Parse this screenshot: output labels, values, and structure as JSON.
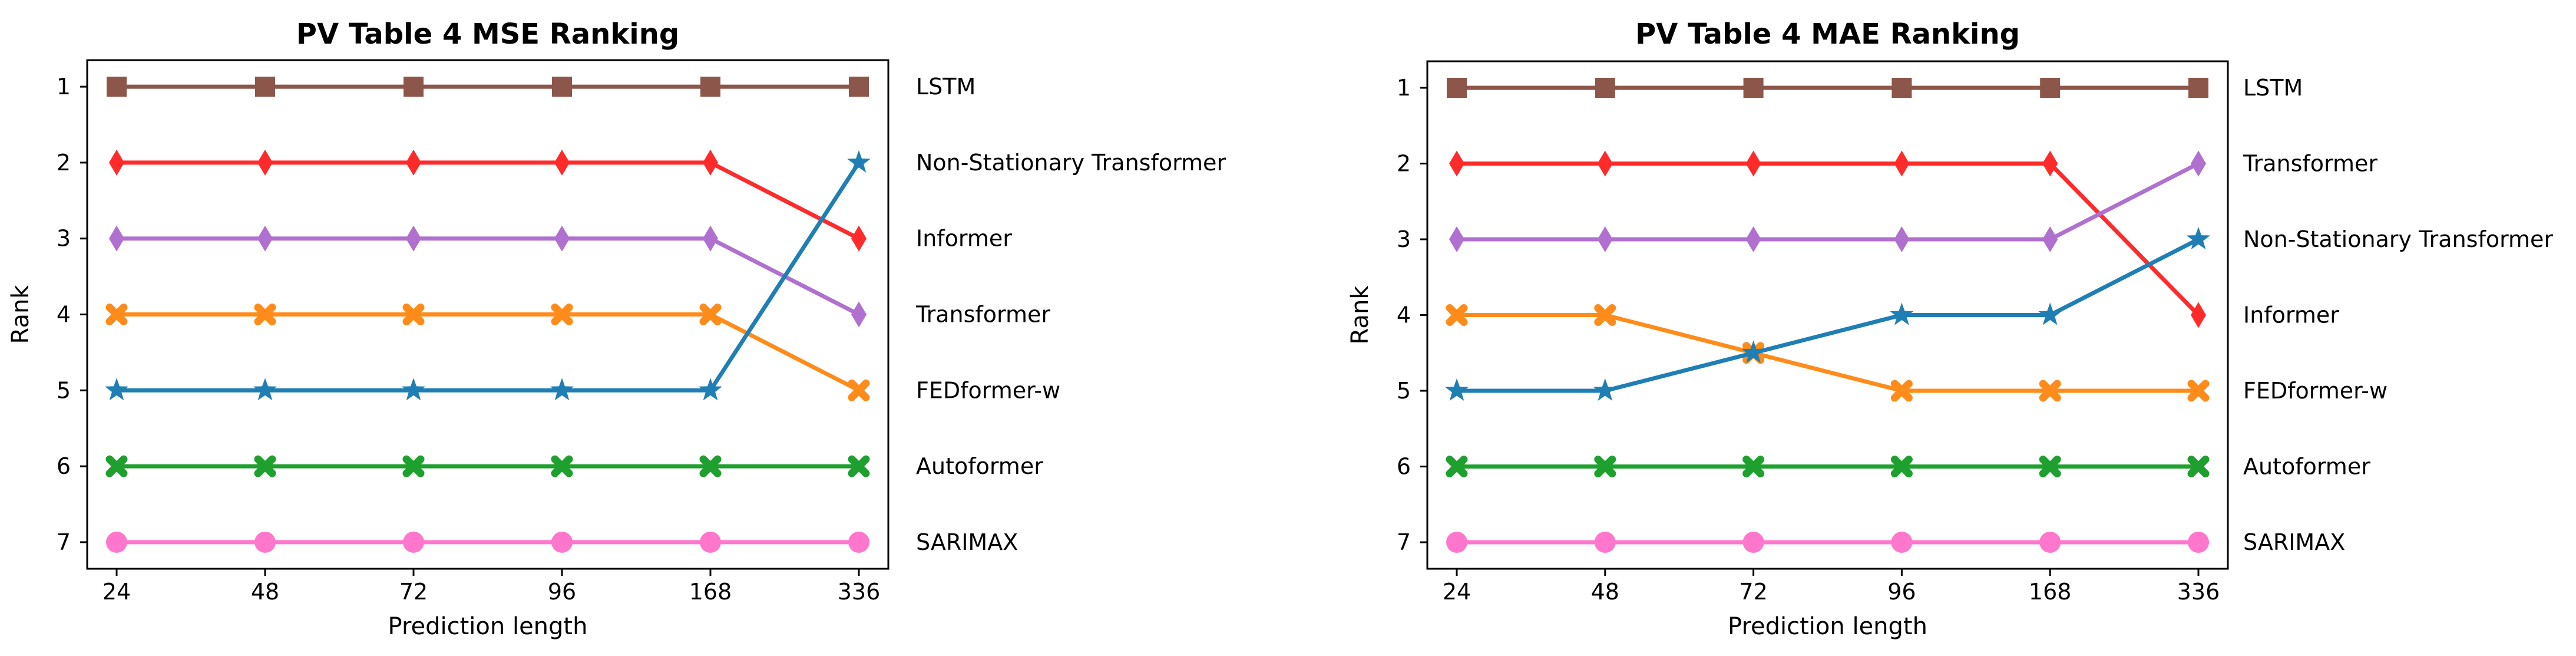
{
  "chart_data": [
    {
      "type": "line",
      "title": "PV Table 4 MSE Ranking",
      "xlabel": "Prediction length",
      "ylabel": "Rank",
      "categories": [
        "24",
        "48",
        "72",
        "96",
        "168",
        "336"
      ],
      "y_ticks": [
        "1",
        "2",
        "3",
        "4",
        "5",
        "6",
        "7"
      ],
      "ylim": [
        7.35,
        0.65
      ],
      "y_inverted": true,
      "grid": false,
      "labels_right": [
        "LSTM",
        "Non-Stationary Transformer",
        "Informer",
        "Transformer",
        "FEDformer-w",
        "Autoformer",
        "SARIMAX"
      ],
      "series": [
        {
          "values": [
            1,
            1,
            1,
            1,
            1,
            1
          ],
          "color": "#8c564b",
          "marker": "square"
        },
        {
          "values": [
            2,
            2,
            2,
            2,
            2,
            3
          ],
          "color": "#ff2b2b",
          "marker": "diamond"
        },
        {
          "values": [
            3,
            3,
            3,
            3,
            3,
            4
          ],
          "color": "#b070d0",
          "marker": "diamond"
        },
        {
          "values": [
            4,
            4,
            4,
            4,
            4,
            5
          ],
          "color": "#ff8c1a",
          "marker": "x"
        },
        {
          "values": [
            5,
            5,
            5,
            5,
            5,
            2
          ],
          "color": "#1f7fb4",
          "marker": "star"
        },
        {
          "values": [
            6,
            6,
            6,
            6,
            6,
            6
          ],
          "color": "#1ea02e",
          "marker": "x"
        },
        {
          "values": [
            7,
            7,
            7,
            7,
            7,
            7
          ],
          "color": "#ff77cc",
          "marker": "circle"
        }
      ]
    },
    {
      "type": "line",
      "title": "PV Table 4 MAE Ranking",
      "xlabel": "Prediction length",
      "ylabel": "Rank",
      "categories": [
        "24",
        "48",
        "72",
        "96",
        "168",
        "336"
      ],
      "y_ticks": [
        "1",
        "2",
        "3",
        "4",
        "5",
        "6",
        "7"
      ],
      "ylim": [
        7.35,
        0.65
      ],
      "y_inverted": true,
      "grid": false,
      "labels_right": [
        "LSTM",
        "Transformer",
        "Non-Stationary Transformer",
        "Informer",
        "FEDformer-w",
        "Autoformer",
        "SARIMAX"
      ],
      "series": [
        {
          "values": [
            1,
            1,
            1,
            1,
            1,
            1
          ],
          "color": "#8c564b",
          "marker": "square"
        },
        {
          "values": [
            2,
            2,
            2,
            2,
            2,
            4
          ],
          "color": "#ff2b2b",
          "marker": "diamond"
        },
        {
          "values": [
            3,
            3,
            3,
            3,
            3,
            2
          ],
          "color": "#b070d0",
          "marker": "diamond"
        },
        {
          "values": [
            4,
            4,
            4.5,
            5,
            5,
            5
          ],
          "color": "#ff8c1a",
          "marker": "x"
        },
        {
          "values": [
            5,
            5,
            4.5,
            4,
            4,
            3
          ],
          "color": "#1f7fb4",
          "marker": "star"
        },
        {
          "values": [
            6,
            6,
            6,
            6,
            6,
            6
          ],
          "color": "#1ea02e",
          "marker": "x"
        },
        {
          "values": [
            7,
            7,
            7,
            7,
            7,
            7
          ],
          "color": "#ff77cc",
          "marker": "circle"
        }
      ]
    }
  ]
}
